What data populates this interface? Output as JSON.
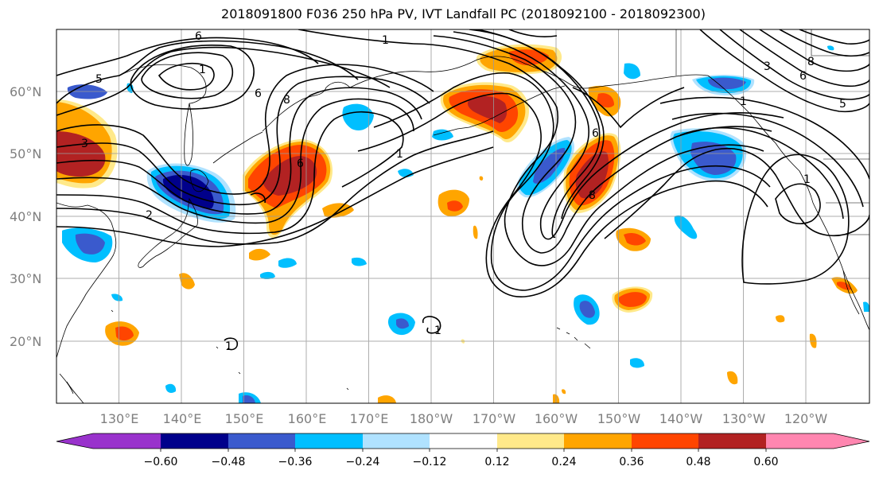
{
  "title": "2018091800 F036 250 hPa PV, IVT Landfall PC (2018092100 - 2018092300)",
  "lat_labels": [
    "60°N",
    "50°N",
    "40°N",
    "30°N",
    "20°N"
  ],
  "lon_labels": [
    "130°E",
    "140°E",
    "150°E",
    "160°E",
    "170°E",
    "180°W",
    "170°W",
    "160°W",
    "150°W",
    "140°W",
    "130°W",
    "120°W"
  ],
  "contour_labels": [
    "6",
    "1",
    "5",
    "1",
    "3",
    "6",
    "8",
    "6",
    "2",
    "1",
    "1",
    "6",
    "8",
    "1",
    "1",
    "6",
    "5",
    "8",
    "3",
    "1"
  ],
  "colorbar": {
    "ticks": [
      "−0.60",
      "−0.48",
      "−0.36",
      "−0.24",
      "−0.12",
      "0.12",
      "0.24",
      "0.36",
      "0.48",
      "0.60"
    ],
    "colors": [
      "#9932cc",
      "#00008b",
      "#3a5acd",
      "#00bfff",
      "#b0e2ff",
      "#ffffff",
      "#ffe98a",
      "#ffa500",
      "#ff4500",
      "#b22222",
      "#ff86b0"
    ]
  },
  "shading_colors": {
    "purple": "#9932cc",
    "navy": "#00008b",
    "royal": "#3a5acd",
    "sky": "#00bfff",
    "lightblue": "#b0e2ff",
    "yellow": "#ffe98a",
    "orange": "#ffa500",
    "redorange": "#ff4500",
    "darkred": "#b22222"
  }
}
